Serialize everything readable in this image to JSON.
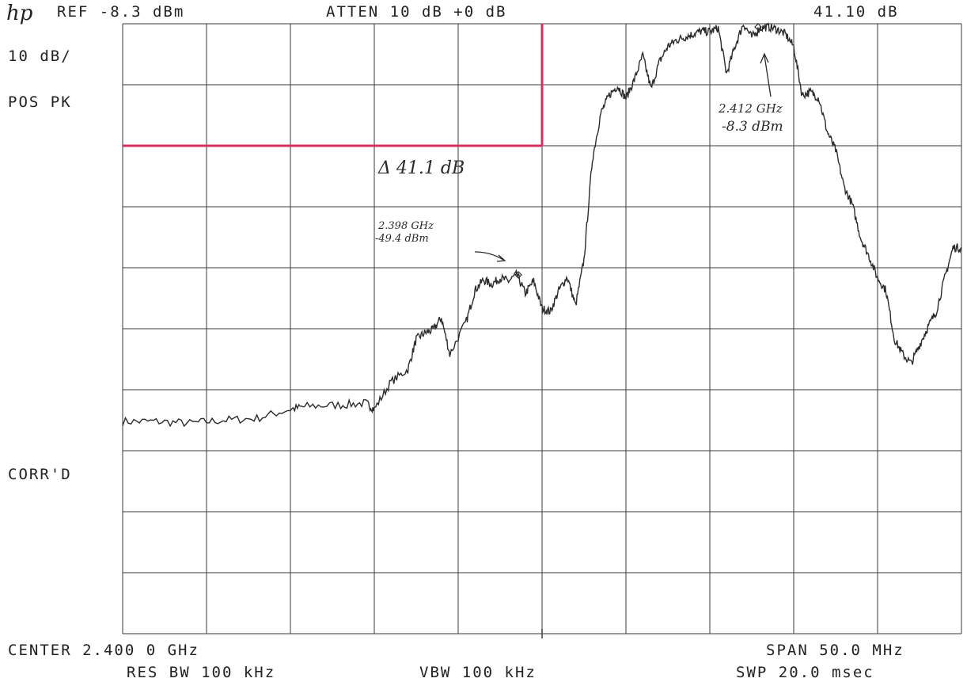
{
  "header": {
    "logo": "hp",
    "ref": "REF -8.3 dBm",
    "atten": "ATTEN 10 dB +0 dB",
    "marker_readout": "41.10 dB"
  },
  "left_panel": {
    "scale": "10 dB/",
    "detector": "POS PK",
    "corr": "CORR'D"
  },
  "footer": {
    "center": "CENTER 2.400 0 GHz",
    "span": "SPAN 50.0 MHz",
    "res_bw": "RES BW 100 kHz",
    "vbw": "VBW 100 kHz",
    "swp": "SWP 20.0 msec"
  },
  "annotations": {
    "delta": "Δ 41.1 dB",
    "marker2_freq": "2.398 GHz",
    "marker2_level": "-49.4 dBm",
    "marker1_freq": "2.412 GHz",
    "marker1_level": "-8.3 dBm"
  },
  "colors": {
    "trace": "#2b2b2b",
    "grid": "#3a3a3a",
    "limit_line": "#d4305f"
  },
  "chart_data": {
    "type": "line",
    "title": "",
    "xlabel": "",
    "ylabel": "",
    "xlim": [
      2.375,
      2.425
    ],
    "ylim": [
      -108.3,
      -8.3
    ],
    "x_unit": "GHz",
    "y_unit": "dBm",
    "grid": true,
    "limit_line": {
      "x": [
        2.375,
        2.4
      ],
      "y": -28.3
    },
    "series": [
      {
        "x": [
          2.375,
          2.377,
          2.379,
          2.381,
          2.383,
          2.385,
          2.386,
          2.388,
          2.3895,
          2.39,
          2.391,
          2.392,
          2.3925,
          2.393,
          2.3935,
          2.394,
          2.3945,
          2.3955,
          2.396,
          2.3965,
          2.397,
          2.3975,
          2.398,
          2.3985,
          2.399,
          2.3995,
          2.4,
          2.4005,
          2.401,
          2.4015,
          2.402,
          2.4025,
          2.403,
          2.4035,
          2.404,
          2.4045,
          2.405,
          2.4055,
          2.406,
          2.4065,
          2.407,
          2.4075,
          2.408,
          2.4085,
          2.409,
          2.4095,
          2.41,
          2.4105,
          2.411,
          2.4115,
          2.412,
          2.4125,
          2.413,
          2.4135,
          2.414,
          2.4145,
          2.415,
          2.4155,
          2.416,
          2.4165,
          2.417,
          2.4175,
          2.418,
          2.4185,
          2.419,
          2.4195,
          2.42,
          2.4205,
          2.421,
          2.4215,
          2.422,
          2.4225,
          2.423,
          2.4235,
          2.424,
          2.4245,
          2.425
        ],
        "y": [
          -73.5,
          -73.5,
          -73.8,
          -73.3,
          -73.0,
          -71.5,
          -71.0,
          -70.8,
          -70.5,
          -71.5,
          -67.0,
          -65.0,
          -60.0,
          -59.0,
          -58.5,
          -56.5,
          -62.5,
          -57.0,
          -52.0,
          -50.3,
          -51.0,
          -50.0,
          -50.5,
          -49.4,
          -52.5,
          -50.5,
          -55.0,
          -55.5,
          -52.0,
          -49.8,
          -54.5,
          -47.0,
          -30.5,
          -23.0,
          -20.0,
          -18.5,
          -20.5,
          -17.5,
          -13.5,
          -19.0,
          -14.5,
          -12.0,
          -11.0,
          -10.5,
          -10.0,
          -9.5,
          -9.6,
          -9.0,
          -16.5,
          -12.0,
          -8.3,
          -10.5,
          -9.0,
          -8.8,
          -9.2,
          -10.0,
          -12.0,
          -20.0,
          -19.5,
          -20.5,
          -26.0,
          -29.0,
          -35.0,
          -38.0,
          -43.5,
          -46.5,
          -50.0,
          -52.0,
          -60.0,
          -62.5,
          -64.0,
          -61.0,
          -58.0,
          -55.5,
          -50.0,
          -45.0,
          -45.0
        ]
      }
    ]
  }
}
